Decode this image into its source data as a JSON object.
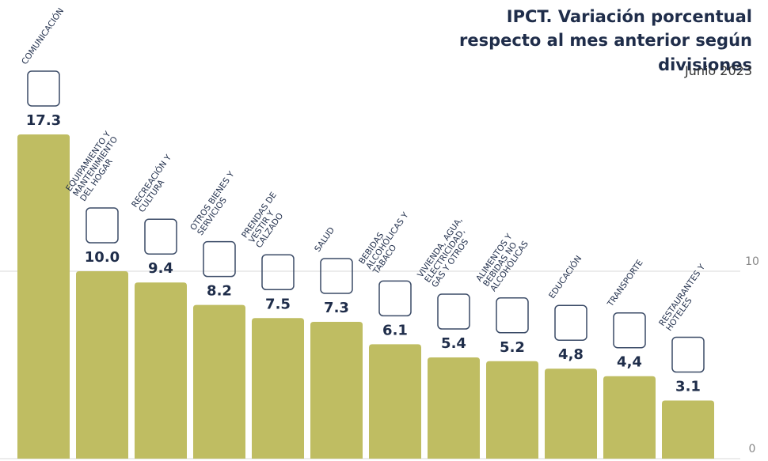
{
  "chart_data": {
    "type": "bar",
    "title": "IPCT. Variación porcentual respecto al mes anterior según divisiones",
    "subtitle": "Junio 2023",
    "categories": [
      "COMUNICACIÓN",
      "EQUIPAMIENTO Y MANTENIMIENTO DEL HOGAR",
      "RECREACIÓN Y CULTURA",
      "OTROS BIENES Y SERVICIOS",
      "PRENDAS DE VESTIR Y CALZADO",
      "SALUD",
      "BEBIDAS ALCOHÓLICAS Y TABACO",
      "VIVIENDA, AGUA, ELECTRICIDAD, GAS Y OTROS",
      "ALIMENTOS Y BEBIDAS NO ALCOHÓLICAS",
      "EDUCACIÓN",
      "TRANSPORTE",
      "RESTAURANTES Y HOTELES"
    ],
    "values": [
      17.3,
      10.0,
      9.4,
      8.2,
      7.5,
      7.3,
      6.1,
      5.4,
      5.2,
      4.8,
      4.4,
      3.1
    ],
    "value_labels": [
      "17.3",
      "10.0",
      "9.4",
      "8.2",
      "7.5",
      "7.3",
      "6.1",
      "5.4",
      "5.2",
      "4,8",
      "4,4",
      "3.1"
    ],
    "color": "#bfbd62",
    "ylim": [
      0,
      20
    ],
    "yticks": [
      0,
      10
    ],
    "grid": true
  }
}
